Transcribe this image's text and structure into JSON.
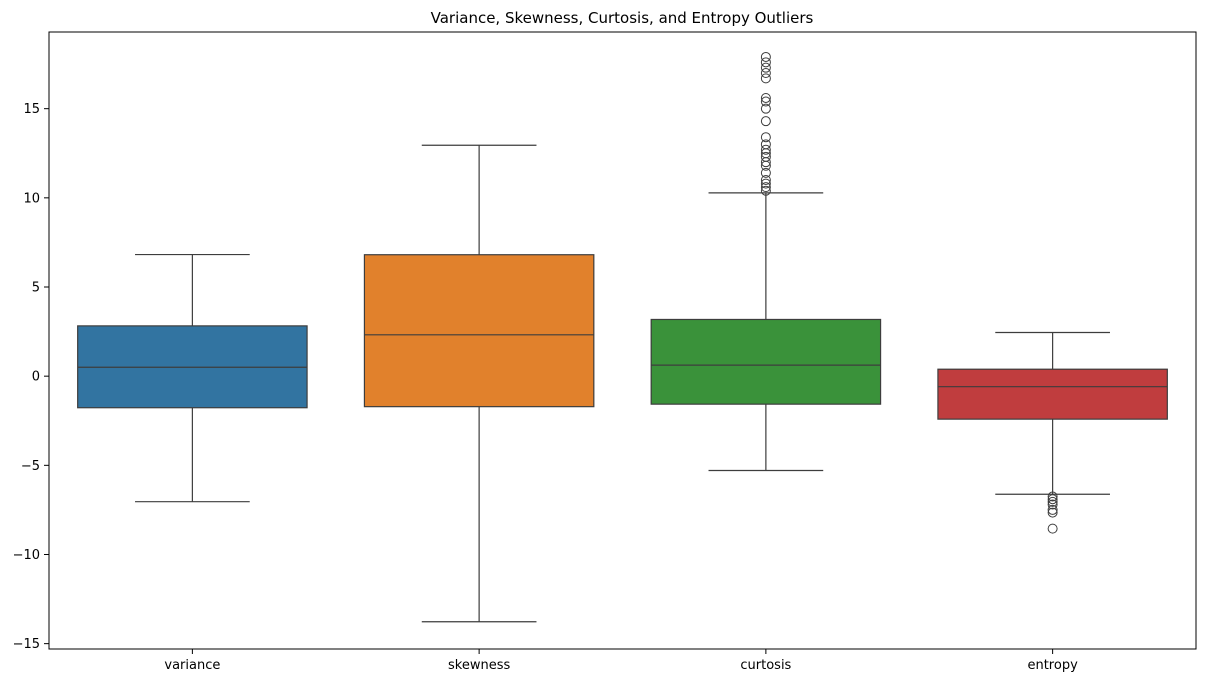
{
  "chart_data": {
    "type": "box",
    "title": "Variance, Skewness, Curtosis, and Entropy Outliers",
    "xlabel": "",
    "ylabel": "",
    "ylim": [
      -15.3,
      19.3
    ],
    "yticks": [
      -15,
      -10,
      -5,
      0,
      5,
      10,
      15
    ],
    "grid": false,
    "categories": [
      "variance",
      "skewness",
      "curtosis",
      "entropy"
    ],
    "series": [
      {
        "category": "variance",
        "color": "#3274a1",
        "whisker_low": -7.04,
        "q1": -1.77,
        "median": 0.5,
        "q3": 2.82,
        "whisker_high": 6.82,
        "outliers": []
      },
      {
        "category": "skewness",
        "color": "#e1812c",
        "whisker_low": -13.77,
        "q1": -1.71,
        "median": 2.32,
        "q3": 6.81,
        "whisker_high": 12.95,
        "outliers": []
      },
      {
        "category": "curtosis",
        "color": "#3a923a",
        "whisker_low": -5.29,
        "q1": -1.57,
        "median": 0.62,
        "q3": 3.18,
        "whisker_high": 10.28,
        "outliers": [
          10.4,
          10.6,
          10.8,
          11.0,
          11.4,
          11.8,
          12.0,
          12.3,
          12.5,
          12.7,
          13.0,
          13.4,
          14.3,
          15.0,
          15.4,
          15.6,
          16.7,
          17.0,
          17.3,
          17.6,
          17.9
        ]
      },
      {
        "category": "entropy",
        "color": "#c03d3e",
        "whisker_low": -6.62,
        "q1": -2.41,
        "median": -0.59,
        "q3": 0.39,
        "whisker_high": 2.45,
        "outliers": [
          -6.75,
          -6.9,
          -7.05,
          -7.2,
          -7.5,
          -7.65,
          -8.55
        ]
      }
    ]
  }
}
